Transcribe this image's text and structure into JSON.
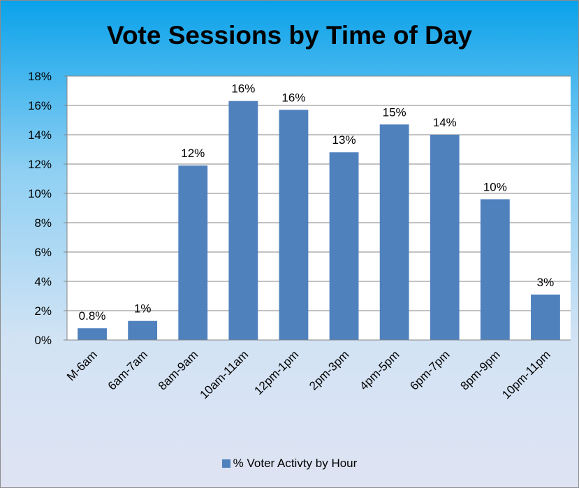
{
  "chart_data": {
    "type": "bar",
    "title": "Vote Sessions by Time of Day",
    "categories": [
      "M-6am",
      "6am-7am",
      "8am-9am",
      "10am-11am",
      "12pm-1pm",
      "2pm-3pm",
      "4pm-5pm",
      "6pm-7pm",
      "8pm-9pm",
      "10pm-11pm"
    ],
    "series": [
      {
        "name": "% Voter Activty by Hour",
        "values": [
          0.8,
          1.3,
          11.9,
          16.3,
          15.7,
          12.8,
          14.7,
          14.0,
          9.6,
          3.1
        ],
        "data_labels": [
          "0.8%",
          "1%",
          "12%",
          "16%",
          "16%",
          "13%",
          "15%",
          "14%",
          "10%",
          "3%"
        ],
        "color": "#4f81bd"
      }
    ],
    "ylim": [
      0,
      18
    ],
    "yticks": [
      0,
      2,
      4,
      6,
      8,
      10,
      12,
      14,
      16,
      18
    ],
    "ytick_labels": [
      "0%",
      "2%",
      "4%",
      "6%",
      "8%",
      "10%",
      "12%",
      "14%",
      "16%",
      "18%"
    ],
    "xlabel": "",
    "ylabel": "",
    "grid": true,
    "legend_position": "bottom",
    "plot_background": "#ffffff",
    "gridline_color": "#868686"
  }
}
